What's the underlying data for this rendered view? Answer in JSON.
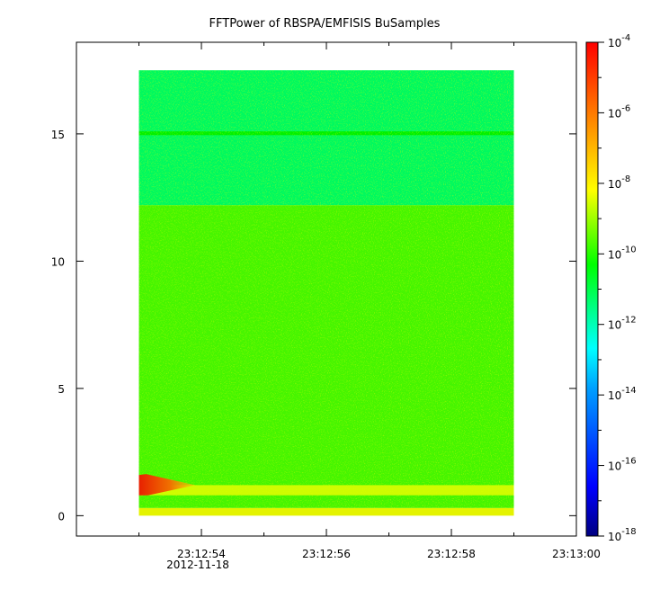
{
  "chart_data": {
    "type": "heatmap",
    "title": "FFTPower of RBSPA/EMFISIS  BuSamples",
    "x_axis": {
      "range_seconds": [
        52.0,
        60.0
      ],
      "ticks": [
        {
          "label": "23:12:54",
          "t": 54
        },
        {
          "label": "23:12:56",
          "t": 56
        },
        {
          "label": "23:12:58",
          "t": 58
        },
        {
          "label": "23:13:00",
          "t": 60
        }
      ],
      "minor_ticks": [
        53,
        55,
        57,
        59
      ],
      "date_label": "2012-11-18"
    },
    "y_axis": {
      "range": [
        -0.8,
        18.6
      ],
      "ticks": [
        0,
        5,
        10,
        15
      ]
    },
    "data_extent": {
      "t_start": 53.0,
      "t_end": 59.0,
      "f_min": 0,
      "f_max": 17.5
    },
    "bands": [
      {
        "f_from": 12.2,
        "f_to": 17.5,
        "log_power": -12.0,
        "note": "upper band"
      },
      {
        "f_from": 0.3,
        "f_to": 12.2,
        "log_power": -10.3,
        "note": "main band"
      },
      {
        "f_from": 0.0,
        "f_to": 0.3,
        "log_power": -8.6,
        "note": "bottom edge"
      },
      {
        "f_from": 14.95,
        "f_to": 15.1,
        "log_power": -11.0,
        "note": "line at 15"
      },
      {
        "f_from": 0.8,
        "f_to": 1.2,
        "log_power": -8.9,
        "note": "low-frequency streak"
      }
    ],
    "features": [
      {
        "type": "burst",
        "t": 53.0,
        "t_end": 53.9,
        "f_from": 0.8,
        "f_to": 1.6,
        "log_power": -6.8
      }
    ],
    "colorbar": {
      "scale": "log",
      "range_exp": [
        -18,
        -4
      ],
      "ticks": [
        {
          "base": "10",
          "exp": "-4"
        },
        {
          "base": "10",
          "exp": "-6"
        },
        {
          "base": "10",
          "exp": "-8"
        },
        {
          "base": "10",
          "exp": "-10"
        },
        {
          "base": "10",
          "exp": "-12"
        },
        {
          "base": "10",
          "exp": "-14"
        },
        {
          "base": "10",
          "exp": "-16"
        },
        {
          "base": "10",
          "exp": "-18"
        }
      ],
      "colormap": [
        "#000080",
        "#0000ff",
        "#00ffff",
        "#00ff00",
        "#ffff00",
        "#ff0000"
      ]
    }
  }
}
